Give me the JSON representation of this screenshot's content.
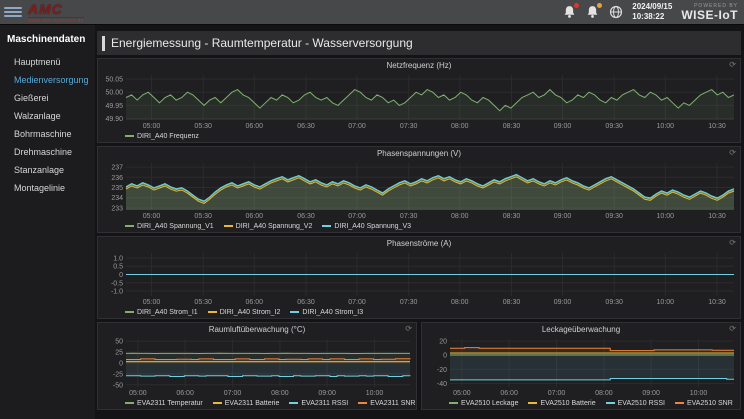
{
  "topbar": {
    "logo_text": "AMC",
    "logo_sub": "www.amc-systeme.de",
    "date": "2024/09/15",
    "time": "10:38:22",
    "powered_by": "POWERED BY",
    "brand": "WISE-IoT",
    "alarm_badge_color": "#e0352f",
    "warning_badge_color": "#e8a23a"
  },
  "sidebar": {
    "header": "Maschinendaten",
    "active_color": "#55a9dd",
    "items": [
      {
        "label": "Hauptmenü",
        "active": false
      },
      {
        "label": "Medienversorgung",
        "active": true
      },
      {
        "label": "Gießerei",
        "active": false
      },
      {
        "label": "Walzanlage",
        "active": false
      },
      {
        "label": "Bohrmaschine",
        "active": false
      },
      {
        "label": "Drehmaschine",
        "active": false
      },
      {
        "label": "Stanzanlage",
        "active": false
      },
      {
        "label": "Montagelinie",
        "active": false
      }
    ]
  },
  "page": {
    "title": "Energiemessung - Raumtemperatur - Wasserversorgung"
  },
  "chart_data": [
    {
      "type": "line",
      "title": "Netzfrequenz (Hz)",
      "ylim": [
        49.895,
        50.065
      ],
      "yticks": [
        {
          "v": 50.05,
          "label": "50.05"
        },
        {
          "v": 50.0,
          "label": "50.00"
        },
        {
          "v": 49.95,
          "label": "49.95"
        },
        {
          "v": 49.9,
          "label": "49.90"
        }
      ],
      "xticks": [
        {
          "f": 0.042,
          "label": "05:00"
        },
        {
          "f": 0.127,
          "label": "05:30"
        },
        {
          "f": 0.211,
          "label": "06:00"
        },
        {
          "f": 0.296,
          "label": "06:30"
        },
        {
          "f": 0.38,
          "label": "07:00"
        },
        {
          "f": 0.465,
          "label": "07:30"
        },
        {
          "f": 0.549,
          "label": "08:00"
        },
        {
          "f": 0.634,
          "label": "08:30"
        },
        {
          "f": 0.718,
          "label": "09:00"
        },
        {
          "f": 0.803,
          "label": "09:30"
        },
        {
          "f": 0.887,
          "label": "10:00"
        },
        {
          "f": 0.972,
          "label": "10:30"
        }
      ],
      "legend_position": "bottom-left",
      "series": [
        {
          "name": "DIRI_A40 Frequenz",
          "color": "#7eb26d",
          "values": [
            49.98,
            49.99,
            49.97,
            49.99,
            50.0,
            49.98,
            49.96,
            49.98,
            49.99,
            49.97,
            49.98,
            50.0,
            49.99,
            49.97,
            49.95,
            49.97,
            49.98,
            49.96,
            49.98,
            50.0,
            50.01,
            49.99,
            49.98,
            49.96,
            49.94,
            49.96,
            49.98,
            49.97,
            49.99,
            49.98,
            49.96,
            49.97,
            49.99,
            50.0,
            49.98,
            49.97,
            49.98,
            49.96,
            49.95,
            49.97,
            49.99,
            50.01,
            50.0,
            49.98,
            49.97,
            49.99,
            49.98,
            49.96,
            49.97,
            49.95,
            49.96,
            49.98,
            50.0,
            49.99,
            50.01,
            50.0,
            49.98,
            49.99,
            49.97,
            49.98,
            50.0,
            49.99,
            49.97,
            49.96,
            49.98,
            49.97,
            49.95,
            49.93,
            49.95,
            49.94,
            49.96,
            49.98,
            49.99,
            50.0,
            49.98,
            49.99,
            50.01,
            49.99,
            49.98,
            49.96,
            49.97,
            49.99,
            49.98,
            50.0,
            49.99,
            49.97,
            49.96,
            49.98,
            49.97,
            49.99,
            50.0,
            50.01,
            49.99,
            49.98,
            50.0,
            49.99,
            49.97,
            49.98,
            49.96,
            49.94,
            49.96,
            49.95,
            49.97,
            49.99,
            50.0,
            50.01,
            49.99,
            50.0,
            49.98,
            49.99
          ]
        }
      ]
    },
    {
      "type": "line",
      "title": "Phasenspannungen (V)",
      "ylim": [
        232.8,
        237.4
      ],
      "yticks": [
        {
          "v": 237,
          "label": "237"
        },
        {
          "v": 236,
          "label": "236"
        },
        {
          "v": 235,
          "label": "235"
        },
        {
          "v": 234,
          "label": "234"
        },
        {
          "v": 233,
          "label": "233"
        }
      ],
      "xticks": [
        {
          "f": 0.042,
          "label": "05:00"
        },
        {
          "f": 0.127,
          "label": "05:30"
        },
        {
          "f": 0.211,
          "label": "06:00"
        },
        {
          "f": 0.296,
          "label": "06:30"
        },
        {
          "f": 0.38,
          "label": "07:00"
        },
        {
          "f": 0.465,
          "label": "07:30"
        },
        {
          "f": 0.549,
          "label": "08:00"
        },
        {
          "f": 0.634,
          "label": "08:30"
        },
        {
          "f": 0.718,
          "label": "09:00"
        },
        {
          "f": 0.803,
          "label": "09:30"
        },
        {
          "f": 0.887,
          "label": "10:00"
        },
        {
          "f": 0.972,
          "label": "10:30"
        }
      ],
      "legend_position": "bottom-left",
      "series": [
        {
          "name": "DIRI_A40 Spannung_V1",
          "color": "#7eb26d",
          "values": [
            235.0,
            235.3,
            235.1,
            235.4,
            235.2,
            234.9,
            235.1,
            235.3,
            235.0,
            234.8,
            234.9,
            234.6,
            234.2,
            233.8,
            233.6,
            234.0,
            234.5,
            234.9,
            235.2,
            235.4,
            235.1,
            235.3,
            235.5,
            235.2,
            235.0,
            235.3,
            235.6,
            235.8,
            236.0,
            235.7,
            235.9,
            236.1,
            235.8,
            235.5,
            235.7,
            235.4,
            235.2,
            235.5,
            235.3,
            235.6,
            235.4,
            235.1,
            234.9,
            235.2,
            235.0,
            234.7,
            234.4,
            234.8,
            235.1,
            235.4,
            235.6,
            235.3,
            235.5,
            235.8,
            235.6,
            235.9,
            236.1,
            235.8,
            236.0,
            235.7,
            235.5,
            235.8,
            235.6,
            235.3,
            235.1,
            235.4,
            235.7,
            235.5,
            235.8,
            236.0,
            236.2,
            235.9,
            235.6,
            235.8,
            235.5,
            235.3,
            235.6,
            235.4,
            235.7,
            235.9,
            235.6,
            235.4,
            235.1,
            234.9,
            235.2,
            235.5,
            235.8,
            236.0,
            235.7,
            235.4,
            235.1,
            234.8,
            234.4,
            234.0,
            233.9,
            234.3,
            234.6,
            234.4,
            234.7,
            234.5,
            234.2,
            234.0,
            234.3,
            234.6,
            234.4,
            234.1,
            233.9,
            234.2,
            234.6,
            234.8
          ]
        },
        {
          "name": "DIRI_A40 Spannung_V2",
          "color": "#eab839",
          "ref": 0,
          "offset": -0.15
        },
        {
          "name": "DIRI_A40 Spannung_V3",
          "color": "#6ed0e0",
          "ref": 0,
          "offset": 0.08
        }
      ]
    },
    {
      "type": "line",
      "title": "Phasenströme (A)",
      "ylim": [
        -1.3,
        1.3
      ],
      "yticks": [
        {
          "v": 1.0,
          "label": "1.0"
        },
        {
          "v": 0.5,
          "label": "0.5"
        },
        {
          "v": 0,
          "label": "0"
        },
        {
          "v": -0.5,
          "label": "-0.5"
        },
        {
          "v": -1.0,
          "label": "-1.0"
        }
      ],
      "xticks": [
        {
          "f": 0.042,
          "label": "05:00"
        },
        {
          "f": 0.127,
          "label": "05:30"
        },
        {
          "f": 0.211,
          "label": "06:00"
        },
        {
          "f": 0.296,
          "label": "06:30"
        },
        {
          "f": 0.38,
          "label": "07:00"
        },
        {
          "f": 0.465,
          "label": "07:30"
        },
        {
          "f": 0.549,
          "label": "08:00"
        },
        {
          "f": 0.634,
          "label": "08:30"
        },
        {
          "f": 0.718,
          "label": "09:00"
        },
        {
          "f": 0.803,
          "label": "09:30"
        },
        {
          "f": 0.887,
          "label": "10:00"
        },
        {
          "f": 0.972,
          "label": "10:30"
        }
      ],
      "legend_position": "bottom-left",
      "series": [
        {
          "name": "DIRI_A40 Strom_I1",
          "color": "#7eb26d",
          "values": [
            0,
            0
          ]
        },
        {
          "name": "DIRI_A40 Strom_I2",
          "color": "#eab839",
          "ref": 0,
          "offset": 0
        },
        {
          "name": "DIRI_A40 Strom_I3",
          "color": "#6ed0e0",
          "ref": 0,
          "offset": 0
        }
      ]
    },
    {
      "type": "line",
      "title": "Raumluftüberwachung (°C)",
      "ylim": [
        -55,
        55
      ],
      "yticks": [
        {
          "v": 50,
          "label": "50"
        },
        {
          "v": 25,
          "label": "25"
        },
        {
          "v": 0,
          "label": "0"
        },
        {
          "v": -25,
          "label": "-25"
        },
        {
          "v": -50,
          "label": "-50"
        }
      ],
      "xticks": [
        {
          "f": 0.042,
          "label": "05:00"
        },
        {
          "f": 0.208,
          "label": "06:00"
        },
        {
          "f": 0.375,
          "label": "07:00"
        },
        {
          "f": 0.542,
          "label": "08:00"
        },
        {
          "f": 0.708,
          "label": "09:00"
        },
        {
          "f": 0.875,
          "label": "10:00"
        }
      ],
      "legend_position": "bottom-left",
      "series": [
        {
          "name": "EVA2311 Temperatur",
          "color": "#7eb26d",
          "values": [
            22,
            22.2,
            22.1,
            22,
            21.8,
            21.9,
            22,
            22.1,
            22,
            21.9,
            21.8,
            22,
            22.1,
            22.2,
            22,
            21.9,
            22,
            22.1,
            21.9,
            21.8,
            21.9,
            22,
            22.2,
            22.1,
            22,
            21.9,
            21.8,
            21.9,
            22,
            22.1,
            22,
            21.8,
            21.7,
            21.9,
            22,
            22.1,
            22,
            21.9,
            22,
            22.1
          ]
        },
        {
          "name": "EVA2311 Batterie",
          "color": "#eab839",
          "values": [
            3.1,
            3.1
          ]
        },
        {
          "name": "EVA2311 RSSI",
          "color": "#6ed0e0",
          "step": true,
          "values": [
            -29,
            -29,
            -30,
            -30,
            -29,
            -29,
            -31,
            -31,
            -29,
            -29,
            -30,
            -29,
            -29,
            -29,
            -31,
            -31,
            -29,
            -29,
            -30,
            -30,
            -29,
            -31,
            -31,
            -29,
            -30,
            -30,
            -29,
            -29,
            -31,
            -29,
            -30,
            -30,
            -29,
            -30,
            -29,
            -29,
            -31,
            -31,
            -29,
            -30
          ]
        },
        {
          "name": "EVA2311 SNR",
          "color": "#ef843c",
          "step": true,
          "values": [
            8,
            8,
            9.5,
            9.5,
            8,
            8,
            8,
            8.5,
            8.5,
            8,
            9.5,
            9.5,
            8,
            8,
            8,
            9.5,
            9.5,
            8,
            8,
            9.5,
            9.5,
            8,
            8.5,
            8.5,
            8,
            9.5,
            9.5,
            8,
            9.5,
            9.5,
            8,
            8,
            9.5,
            9.5,
            8,
            8.5,
            8.5,
            9.7,
            9.7,
            8.5
          ]
        }
      ]
    },
    {
      "type": "line",
      "title": "Leckageüberwachung",
      "ylim": [
        -45,
        23
      ],
      "yticks": [
        {
          "v": 20,
          "label": "20"
        },
        {
          "v": 0,
          "label": "0"
        },
        {
          "v": -20,
          "label": "-20"
        },
        {
          "v": -40,
          "label": "-40"
        }
      ],
      "xticks": [
        {
          "f": 0.042,
          "label": "05:00"
        },
        {
          "f": 0.208,
          "label": "06:00"
        },
        {
          "f": 0.375,
          "label": "07:00"
        },
        {
          "f": 0.542,
          "label": "08:00"
        },
        {
          "f": 0.708,
          "label": "09:00"
        },
        {
          "f": 0.875,
          "label": "10:00"
        }
      ],
      "legend_position": "bottom-left",
      "series": [
        {
          "name": "EVA2510 Leckage",
          "color": "#7eb26d",
          "values": [
            0.3,
            0.3
          ]
        },
        {
          "name": "EVA2510 Batterie",
          "color": "#eab839",
          "values": [
            3.1,
            3.1
          ]
        },
        {
          "name": "EVA2510 RSSI",
          "color": "#6ed0e0",
          "step": true,
          "values": [
            -35,
            -35,
            -35,
            -35,
            -35,
            -35,
            -35,
            -35,
            -35,
            -35,
            -35,
            -35,
            -35,
            -35,
            -35,
            -35,
            -35,
            -35,
            -35,
            -35,
            -35,
            -35,
            -33,
            -33,
            -33,
            -33,
            -33,
            -33,
            -33,
            -33,
            -33,
            -33,
            -33,
            -33,
            -33,
            -33,
            -33,
            -33,
            -34,
            -34
          ]
        },
        {
          "name": "EVA2510 SNR",
          "color": "#ef843c",
          "step": true,
          "values": [
            10,
            10,
            10.8,
            10.8,
            10,
            10,
            10,
            10,
            10,
            10,
            10,
            10,
            10,
            10,
            10,
            10,
            10,
            10,
            10,
            10,
            10,
            10,
            6.5,
            6.5,
            6.5,
            6.5,
            6.5,
            6.5,
            7.5,
            7.5,
            7.5,
            7.5,
            7.5,
            7.5,
            7.5,
            7.5,
            7,
            7,
            7,
            7
          ]
        }
      ]
    }
  ]
}
